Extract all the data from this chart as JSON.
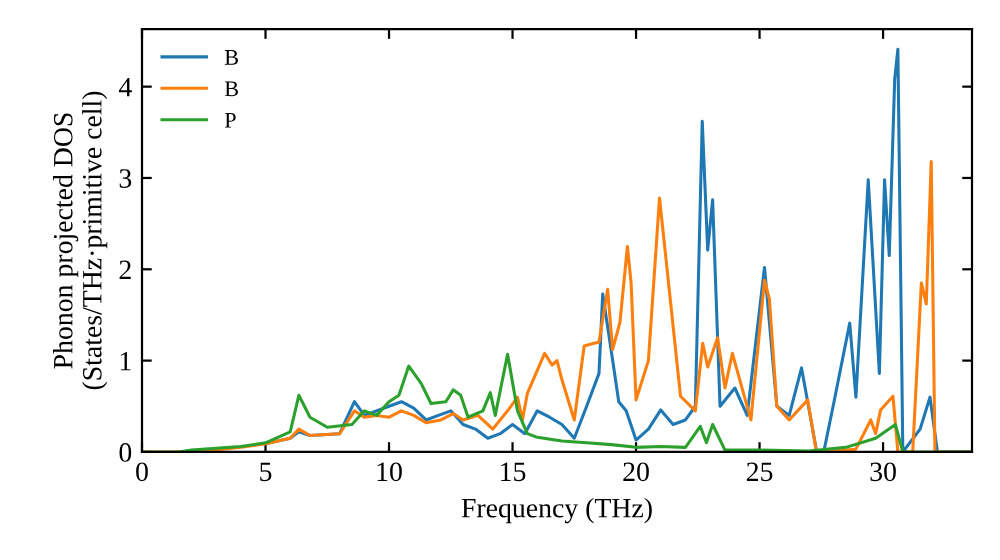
{
  "chart_data": {
    "type": "line",
    "xlabel": "Frequency (THz)",
    "ylabel": "Phonon projected DOS\n(States/THz·primitive cell)",
    "xlim": [
      0,
      33.6
    ],
    "ylim": [
      0,
      4.63
    ],
    "xticks": [
      0,
      5,
      10,
      15,
      20,
      25,
      30
    ],
    "yticks": [
      0,
      1,
      2,
      3,
      4
    ],
    "legend": "top left",
    "grid": false,
    "series": [
      {
        "name": "B",
        "color": "#1f77b4",
        "x": [
          5,
          6,
          6.35,
          6.8,
          8,
          8.6,
          9,
          10,
          10.5,
          11,
          11.5,
          12,
          12.5,
          13,
          13.5,
          14,
          14.5,
          15,
          15.5,
          16,
          16.5,
          17,
          17.5,
          18,
          18.5,
          18.65,
          19,
          19.3,
          19.6,
          20,
          20.5,
          21,
          21.5,
          22,
          22.4,
          22.68,
          22.9,
          23.1,
          23.4,
          24,
          24.5,
          25.2,
          25.7,
          26.2,
          26.7,
          27.3,
          27.6,
          28,
          28.65,
          28.9,
          29.4,
          29.85,
          30.06,
          30.25,
          30.47,
          30.6,
          30.8,
          31.5,
          31.9,
          32.2,
          33.6
        ],
        "values": [
          0.09,
          0.15,
          0.22,
          0.18,
          0.2,
          0.55,
          0.4,
          0.5,
          0.55,
          0.48,
          0.35,
          0.4,
          0.45,
          0.3,
          0.25,
          0.15,
          0.2,
          0.3,
          0.2,
          0.45,
          0.38,
          0.3,
          0.15,
          0.5,
          0.86,
          1.73,
          1.1,
          0.55,
          0.45,
          0.13,
          0.25,
          0.46,
          0.3,
          0.35,
          0.5,
          3.62,
          2.21,
          2.76,
          0.5,
          0.7,
          0.4,
          2.02,
          0.5,
          0.4,
          0.92,
          0.02,
          0,
          0.53,
          1.41,
          0.6,
          2.98,
          0.86,
          2.98,
          2.15,
          4.08,
          4.41,
          0,
          0.25,
          0.6,
          0,
          0
        ]
      },
      {
        "name": "B",
        "color": "#ff7f0e",
        "x": [
          0,
          1.5,
          3,
          4,
          5,
          6,
          6.35,
          6.8,
          8,
          8.6,
          9,
          9.5,
          10,
          10.5,
          11,
          11.5,
          12.1,
          12.6,
          13,
          13.6,
          14.2,
          14.8,
          15.2,
          15.4,
          15.6,
          16.3,
          16.6,
          16.8,
          17.0,
          17.5,
          17.9,
          18.3,
          18.5,
          18.85,
          19.05,
          19.35,
          19.65,
          19.8,
          20.0,
          20.5,
          20.95,
          21.1,
          21.8,
          22.4,
          22.7,
          22.9,
          23.3,
          23.6,
          23.9,
          24.65,
          25.2,
          25.4,
          25.7,
          26.2,
          26.95,
          27.3,
          28.9,
          29.5,
          29.7,
          29.9,
          30.4,
          30.6,
          31.2,
          31.55,
          31.75,
          31.95,
          32.1,
          33.6
        ],
        "values": [
          0,
          0,
          0.02,
          0.05,
          0.09,
          0.15,
          0.25,
          0.18,
          0.2,
          0.45,
          0.38,
          0.4,
          0.38,
          0.45,
          0.4,
          0.32,
          0.35,
          0.42,
          0.35,
          0.4,
          0.25,
          0.45,
          0.6,
          0.35,
          0.64,
          1.08,
          0.95,
          1.0,
          0.79,
          0.35,
          1.16,
          1.19,
          1.2,
          1.78,
          1.12,
          1.42,
          2.25,
          1.85,
          0.57,
          1.0,
          2.78,
          2.4,
          0.61,
          0.45,
          1.19,
          0.93,
          1.25,
          0.7,
          1.08,
          0.35,
          1.88,
          1.67,
          0.5,
          0.35,
          0.57,
          0,
          0.03,
          0.35,
          0.2,
          0.46,
          0.61,
          0,
          0,
          1.85,
          1.62,
          3.18,
          0,
          0
        ]
      },
      {
        "name": "P",
        "color": "#2ca02c",
        "x": [
          0,
          1.5,
          2,
          4,
          5,
          6,
          6.35,
          6.8,
          7.5,
          8.5,
          9,
          9.5,
          10,
          10.4,
          10.8,
          11.3,
          11.7,
          12.3,
          12.6,
          12.9,
          13.2,
          13.8,
          14.1,
          14.3,
          14.8,
          15.2,
          15.6,
          16,
          17,
          18,
          19,
          20,
          21,
          22,
          22.6,
          22.85,
          23.1,
          23.6,
          25,
          27,
          28.5,
          29.7,
          30.5,
          30.8,
          33.6
        ],
        "values": [
          0,
          0,
          0.02,
          0.06,
          0.1,
          0.22,
          0.62,
          0.38,
          0.27,
          0.3,
          0.45,
          0.4,
          0.55,
          0.62,
          0.94,
          0.75,
          0.53,
          0.55,
          0.68,
          0.62,
          0.38,
          0.45,
          0.65,
          0.4,
          1.07,
          0.45,
          0.2,
          0.16,
          0.12,
          0.1,
          0.08,
          0.05,
          0.06,
          0.05,
          0.28,
          0.1,
          0.3,
          0.02,
          0.02,
          0.01,
          0.05,
          0.15,
          0.3,
          0,
          0
        ]
      }
    ]
  }
}
